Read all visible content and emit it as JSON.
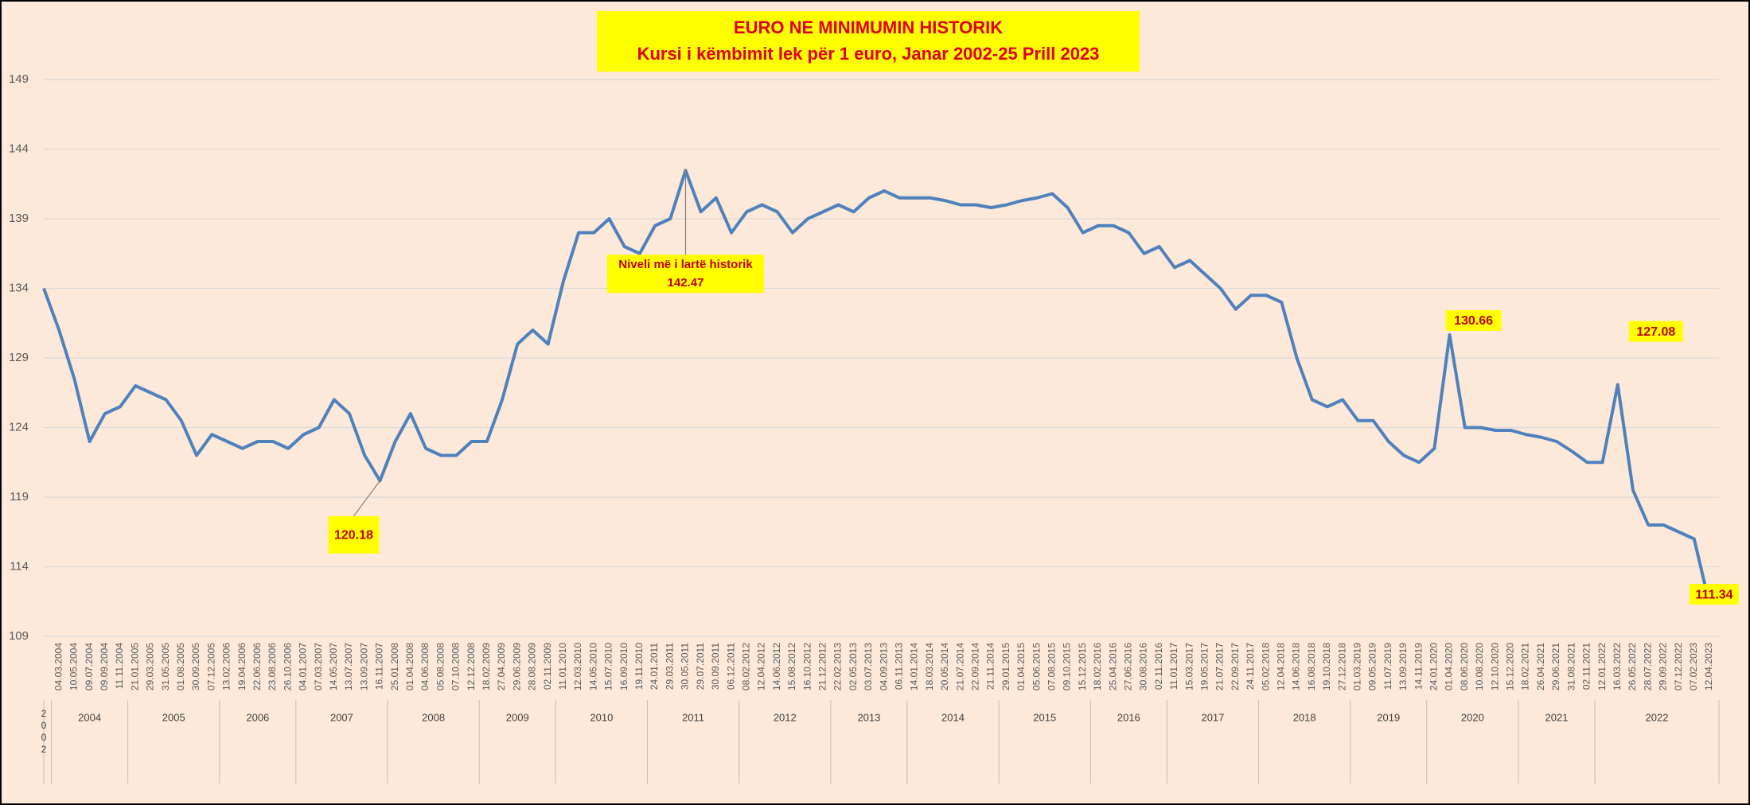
{
  "chart_data": {
    "type": "line",
    "title": "EURO NE MINIMUMIN HISTORIK",
    "subtitle": "Kursi i këmbimit lek për 1 euro, Janar 2002-25 Prill 2023",
    "categories": [
      "2002",
      "04.03.2004",
      "10.05.2004",
      "09.07.2004",
      "09.09.2004",
      "11.11.2004",
      "21.01.2005",
      "29.03.2005",
      "31.05.2005",
      "01.08.2005",
      "30.09.2005",
      "07.12.2005",
      "13.02.2006",
      "19.04.2006",
      "22.06.2006",
      "23.08.2006",
      "26.10.2006",
      "04.01.2007",
      "07.03.2007",
      "14.05.2007",
      "13.07.2007",
      "13.09.2007",
      "16.11.2007",
      "25.01.2008",
      "01.04.2008",
      "04.06.2008",
      "05.08.2008",
      "07.10.2008",
      "12.12.2008",
      "18.02.2009",
      "27.04.2009",
      "29.06.2009",
      "28.08.2009",
      "02.11.2009",
      "11.01.2010",
      "12.03.2010",
      "14.05.2010",
      "15.07.2010",
      "16.09.2010",
      "19.11.2010",
      "24.01.2011",
      "29.03.2011",
      "30.05.2011",
      "29.07.2011",
      "30.09.2011",
      "06.12.2011",
      "08.02.2012",
      "12.04.2012",
      "14.06.2012",
      "15.08.2012",
      "16.10.2012",
      "21.12.2012",
      "22.02.2013",
      "02.05.2013",
      "03.07.2013",
      "04.09.2013",
      "06.11.2013",
      "14.01.2014",
      "18.03.2014",
      "20.05.2014",
      "21.07.2014",
      "22.09.2014",
      "21.11.2014",
      "29.01.2015",
      "01.04.2015",
      "05.06.2015",
      "07.08.2015",
      "09.10.2015",
      "15.12.2015",
      "18.02.2016",
      "25.04.2016",
      "27.06.2016",
      "30.08.2016",
      "02.11.2016",
      "11.01.2017",
      "15.03.2017",
      "19.05.2017",
      "21.07.2017",
      "22.09.2017",
      "24.11.2017",
      "05.02.2018",
      "12.04.2018",
      "14.06.2018",
      "16.08.2018",
      "19.10.2018",
      "27.12.2018",
      "01.03.2019",
      "09.05.2019",
      "11.07.2019",
      "13.09.2019",
      "14.11.2019",
      "24.01.2020",
      "01.04.2020",
      "08.06.2020",
      "10.08.2020",
      "12.10.2020",
      "15.12.2020",
      "18.02.2021",
      "26.04.2021",
      "29.06.2021",
      "31.08.2021",
      "02.11.2021",
      "12.01.2022",
      "16.03.2022",
      "26.05.2022",
      "28.07.2022",
      "29.09.2022",
      "07.12.2022",
      "07.02.2023",
      "12.04.2023"
    ],
    "year_labels": [
      "2002",
      "2004",
      "2005",
      "2006",
      "2007",
      "2008",
      "2009",
      "2010",
      "2011",
      "2012",
      "2013",
      "2014",
      "2015",
      "2016",
      "2017",
      "2018",
      "2019",
      "2020",
      "2021",
      "2022"
    ],
    "series": [
      {
        "color": "#4f81bd",
        "values": [
          134,
          131,
          127.5,
          123,
          125,
          125.5,
          127,
          126.5,
          126,
          124.5,
          122,
          123.5,
          123,
          122.5,
          123,
          123,
          122.5,
          123.5,
          124,
          126,
          125,
          122,
          120.18,
          123,
          125,
          122.5,
          122,
          122,
          123,
          123,
          126,
          130,
          131,
          130,
          134.5,
          138,
          138,
          139,
          137,
          136.5,
          138.5,
          139,
          142.47,
          139.5,
          140.5,
          138,
          139.5,
          140,
          139.5,
          138,
          139,
          139.5,
          140,
          139.5,
          140.5,
          141,
          140.5,
          140.5,
          140.5,
          140.3,
          140,
          140,
          139.8,
          140,
          140.3,
          140.5,
          140.8,
          139.8,
          138,
          138.5,
          138.5,
          138,
          136.5,
          137,
          135.5,
          136,
          135,
          134,
          132.5,
          133.5,
          133.5,
          133,
          129,
          126,
          125.5,
          126,
          124.5,
          124.5,
          123,
          122,
          121.5,
          122.5,
          130.66,
          124,
          124,
          123.8,
          123.8,
          123.5,
          123.3,
          123,
          122.3,
          121.5,
          121.5,
          127.08,
          119.5,
          117,
          117,
          116.5,
          116,
          111.34
        ]
      }
    ],
    "annotations": [
      {
        "text": "Niveli më i lartë historik",
        "value": 142.47
      },
      {
        "value": 120.18
      },
      {
        "value": 130.66
      },
      {
        "value": 127.08
      },
      {
        "value": 111.34
      }
    ],
    "ylim": [
      109,
      149
    ],
    "yticks": [
      109,
      114,
      119,
      124,
      129,
      134,
      139,
      144,
      149
    ],
    "grid": true
  }
}
